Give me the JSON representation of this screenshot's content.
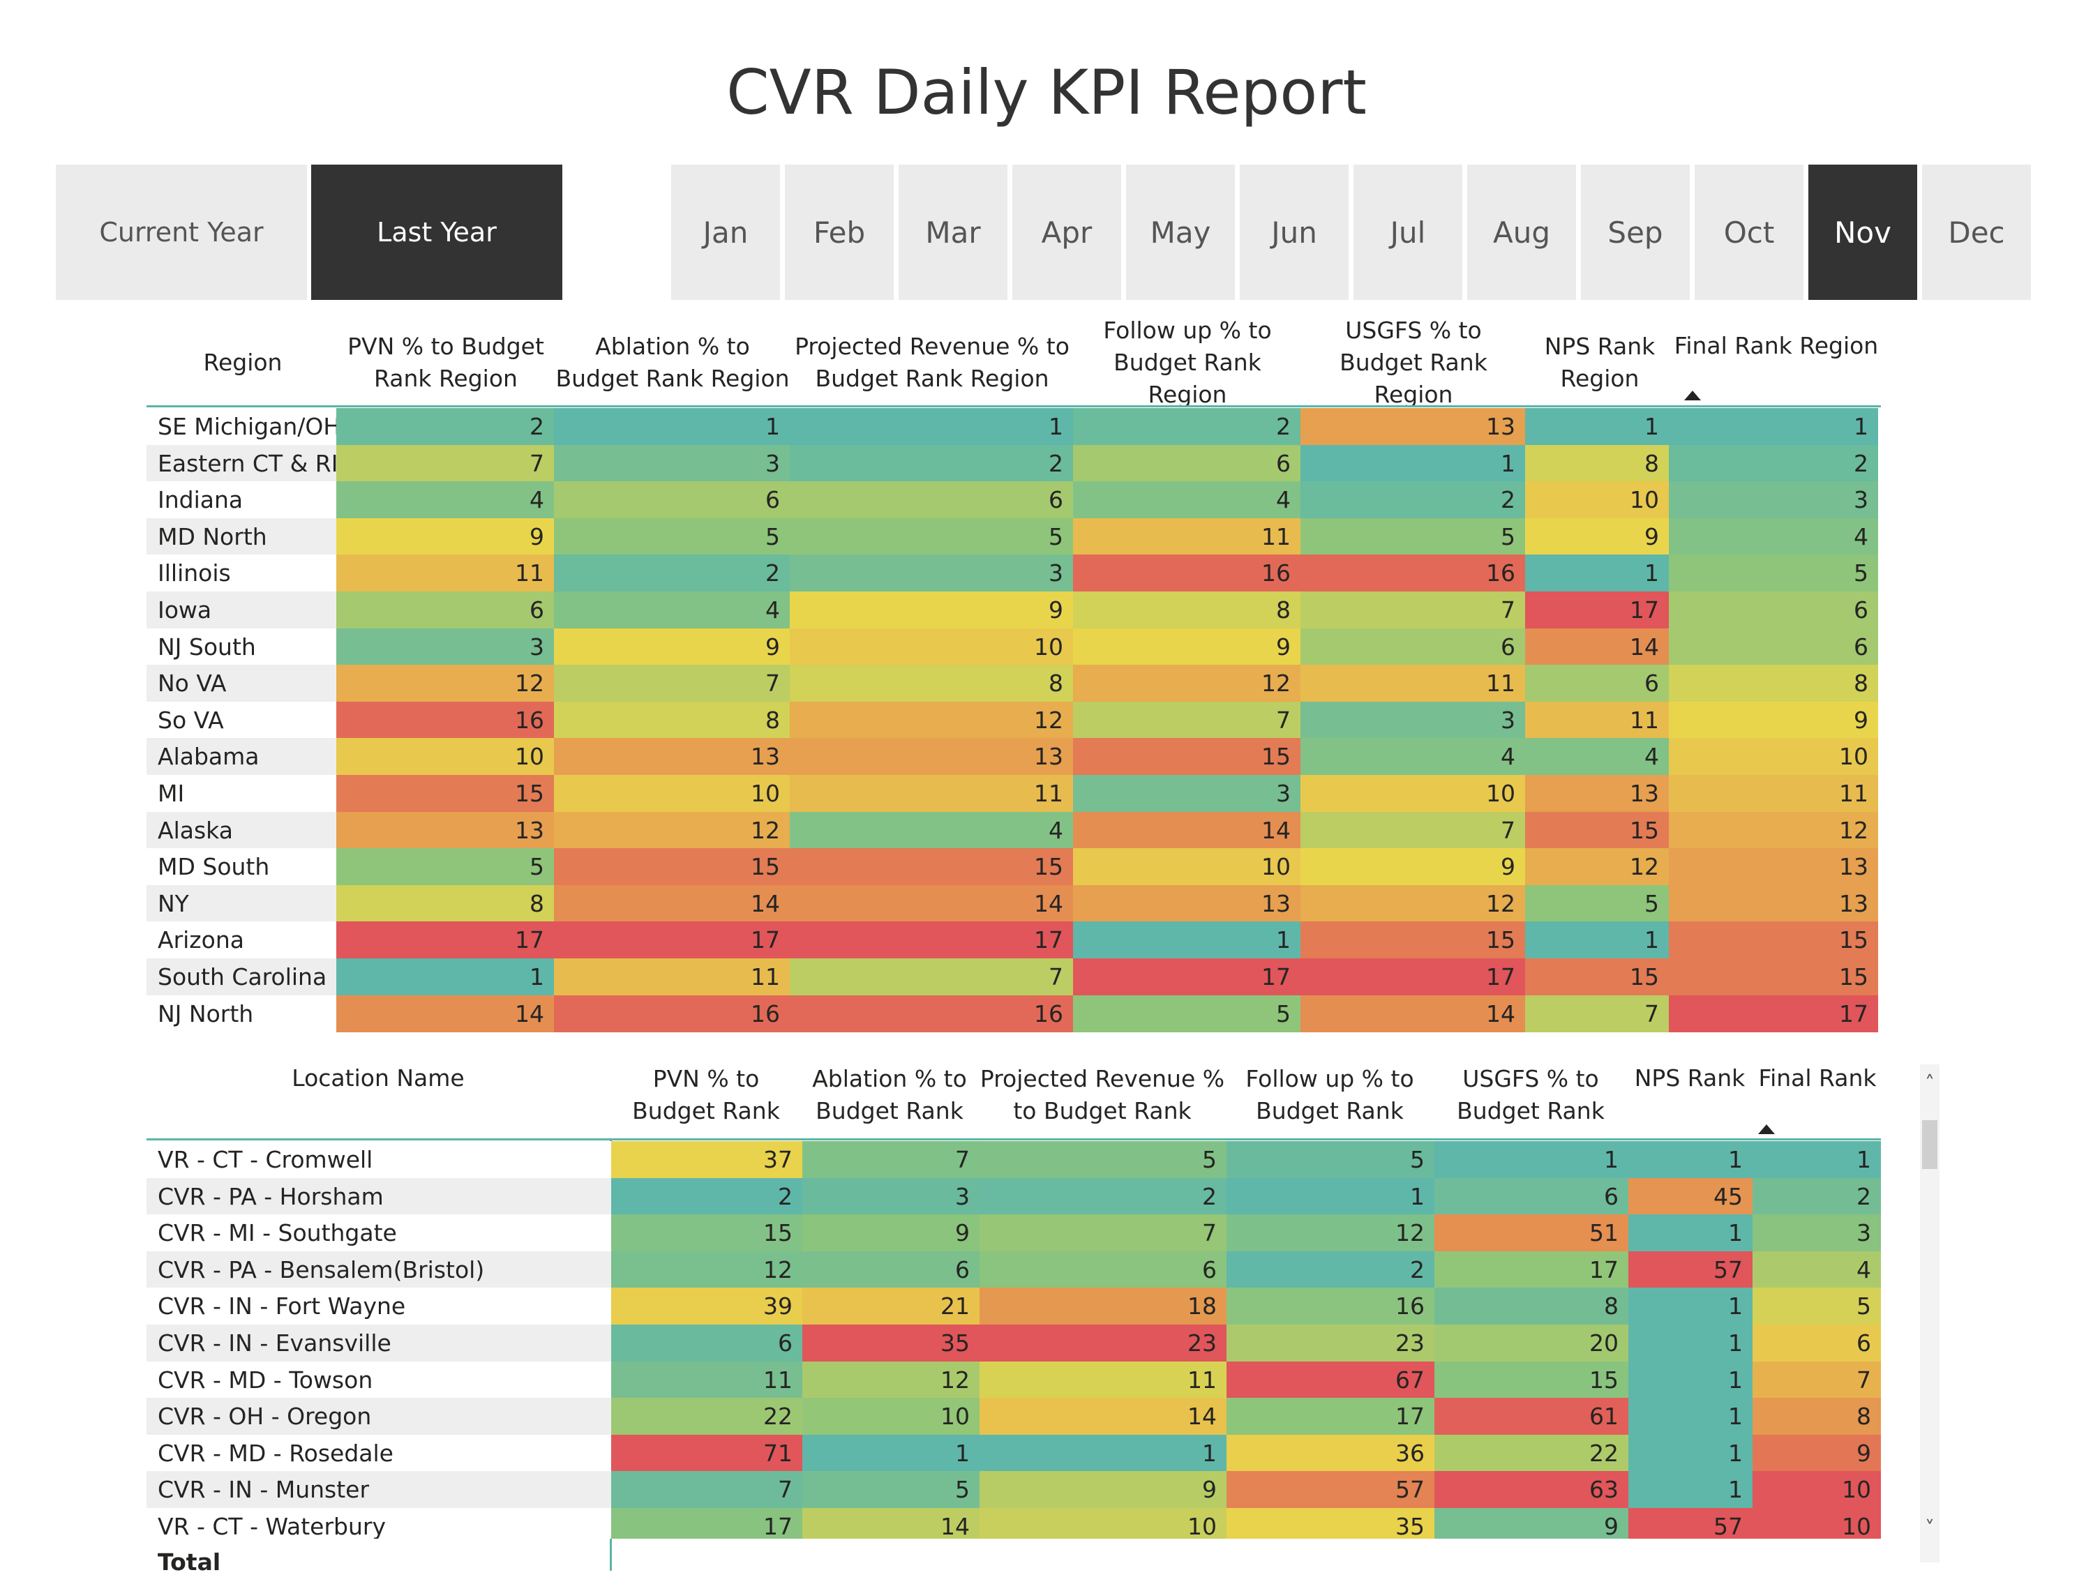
{
  "report_title": "CVR Daily KPI Report",
  "year_slicer": [
    {
      "label": "Current Year",
      "selected": false
    },
    {
      "label": "Last Year",
      "selected": true
    }
  ],
  "month_slicer": [
    {
      "label": "Jan",
      "selected": false
    },
    {
      "label": "Feb",
      "selected": false
    },
    {
      "label": "Mar",
      "selected": false
    },
    {
      "label": "Apr",
      "selected": false
    },
    {
      "label": "May",
      "selected": false
    },
    {
      "label": "Jun",
      "selected": false
    },
    {
      "label": "Jul",
      "selected": false
    },
    {
      "label": "Aug",
      "selected": false
    },
    {
      "label": "Sep",
      "selected": false
    },
    {
      "label": "Oct",
      "selected": false
    },
    {
      "label": "Nov",
      "selected": true
    },
    {
      "label": "Dec",
      "selected": false
    }
  ],
  "region_table": {
    "columns": [
      "Region",
      "PVN % to Budget Rank Region",
      "Ablation % to Budget Rank Region",
      "Projected Revenue % to Budget Rank Region",
      "Follow up % to Budget Rank Region",
      "USGFS % to Budget Rank Region",
      "NPS Rank Region",
      "Final Rank Region"
    ],
    "sorted_column": "Final Rank Region",
    "rows": [
      {
        "name": "SE Michigan/OH",
        "values": [
          2,
          1,
          1,
          2,
          13,
          1,
          1
        ]
      },
      {
        "name": "Eastern CT & RI",
        "values": [
          7,
          3,
          2,
          6,
          1,
          8,
          2
        ]
      },
      {
        "name": "Indiana",
        "values": [
          4,
          6,
          6,
          4,
          2,
          10,
          3
        ]
      },
      {
        "name": "MD North",
        "values": [
          9,
          5,
          5,
          11,
          5,
          9,
          4
        ]
      },
      {
        "name": "Illinois",
        "values": [
          11,
          2,
          3,
          16,
          16,
          1,
          5
        ]
      },
      {
        "name": "Iowa",
        "values": [
          6,
          4,
          9,
          8,
          7,
          17,
          6
        ]
      },
      {
        "name": "NJ South",
        "values": [
          3,
          9,
          10,
          9,
          6,
          14,
          6
        ]
      },
      {
        "name": "No VA",
        "values": [
          12,
          7,
          8,
          12,
          11,
          6,
          8
        ]
      },
      {
        "name": "So VA",
        "values": [
          16,
          8,
          12,
          7,
          3,
          11,
          9
        ]
      },
      {
        "name": "Alabama",
        "values": [
          10,
          13,
          13,
          15,
          4,
          4,
          10
        ]
      },
      {
        "name": "MI",
        "values": [
          15,
          10,
          11,
          3,
          10,
          13,
          11
        ]
      },
      {
        "name": "Alaska",
        "values": [
          13,
          12,
          4,
          14,
          7,
          15,
          12
        ]
      },
      {
        "name": "MD South",
        "values": [
          5,
          15,
          15,
          10,
          9,
          12,
          13
        ]
      },
      {
        "name": "NY",
        "values": [
          8,
          14,
          14,
          13,
          12,
          5,
          13
        ]
      },
      {
        "name": "Arizona",
        "values": [
          17,
          17,
          17,
          1,
          15,
          1,
          15
        ]
      },
      {
        "name": "South Carolina",
        "values": [
          1,
          11,
          7,
          17,
          17,
          15,
          15
        ]
      },
      {
        "name": "NJ North",
        "values": [
          14,
          16,
          16,
          5,
          14,
          7,
          17
        ]
      }
    ]
  },
  "location_table": {
    "columns": [
      "Location Name",
      "PVN % to Budget Rank",
      "Ablation % to Budget Rank",
      "Projected Revenue % to Budget Rank",
      "Follow up % to Budget Rank",
      "USGFS % to Budget Rank",
      "NPS Rank",
      "Final Rank"
    ],
    "sorted_column": "Final Rank",
    "rows": [
      {
        "name": "VR - CT - Cromwell",
        "values": [
          37,
          7,
          5,
          5,
          1,
          1,
          1
        ]
      },
      {
        "name": "CVR - PA - Horsham",
        "values": [
          2,
          3,
          2,
          1,
          6,
          45,
          2
        ]
      },
      {
        "name": "CVR - MI - Southgate",
        "values": [
          15,
          9,
          7,
          12,
          51,
          1,
          3
        ]
      },
      {
        "name": "CVR - PA - Bensalem(Bristol)",
        "values": [
          12,
          6,
          6,
          2,
          17,
          57,
          4
        ]
      },
      {
        "name": "CVR - IN - Fort Wayne",
        "values": [
          39,
          21,
          18,
          16,
          8,
          1,
          5
        ]
      },
      {
        "name": "CVR - IN - Evansville",
        "values": [
          6,
          35,
          23,
          23,
          20,
          1,
          6
        ]
      },
      {
        "name": "CVR - MD - Towson",
        "values": [
          11,
          12,
          11,
          67,
          15,
          1,
          7
        ]
      },
      {
        "name": "CVR - OH - Oregon",
        "values": [
          22,
          10,
          14,
          17,
          61,
          1,
          8
        ]
      },
      {
        "name": "CVR - MD - Rosedale",
        "values": [
          71,
          1,
          1,
          36,
          22,
          1,
          9
        ]
      },
      {
        "name": "CVR - IN - Munster",
        "values": [
          7,
          5,
          9,
          57,
          63,
          1,
          10
        ]
      },
      {
        "name": "VR - CT - Waterbury",
        "values": [
          17,
          14,
          10,
          35,
          9,
          57,
          10
        ]
      }
    ],
    "total_label": "Total"
  },
  "color_scale": {
    "stops": [
      "#5fb7a9",
      "#8ec57a",
      "#e9d54c",
      "#e6a04f",
      "#e0565a"
    ]
  },
  "icons": {
    "sort": "sort-ascending-icon",
    "scroll_up": "chevron-up-icon",
    "scroll_down": "chevron-down-icon"
  },
  "scroll_up_glyph": "˄",
  "scroll_down_glyph": "˅"
}
